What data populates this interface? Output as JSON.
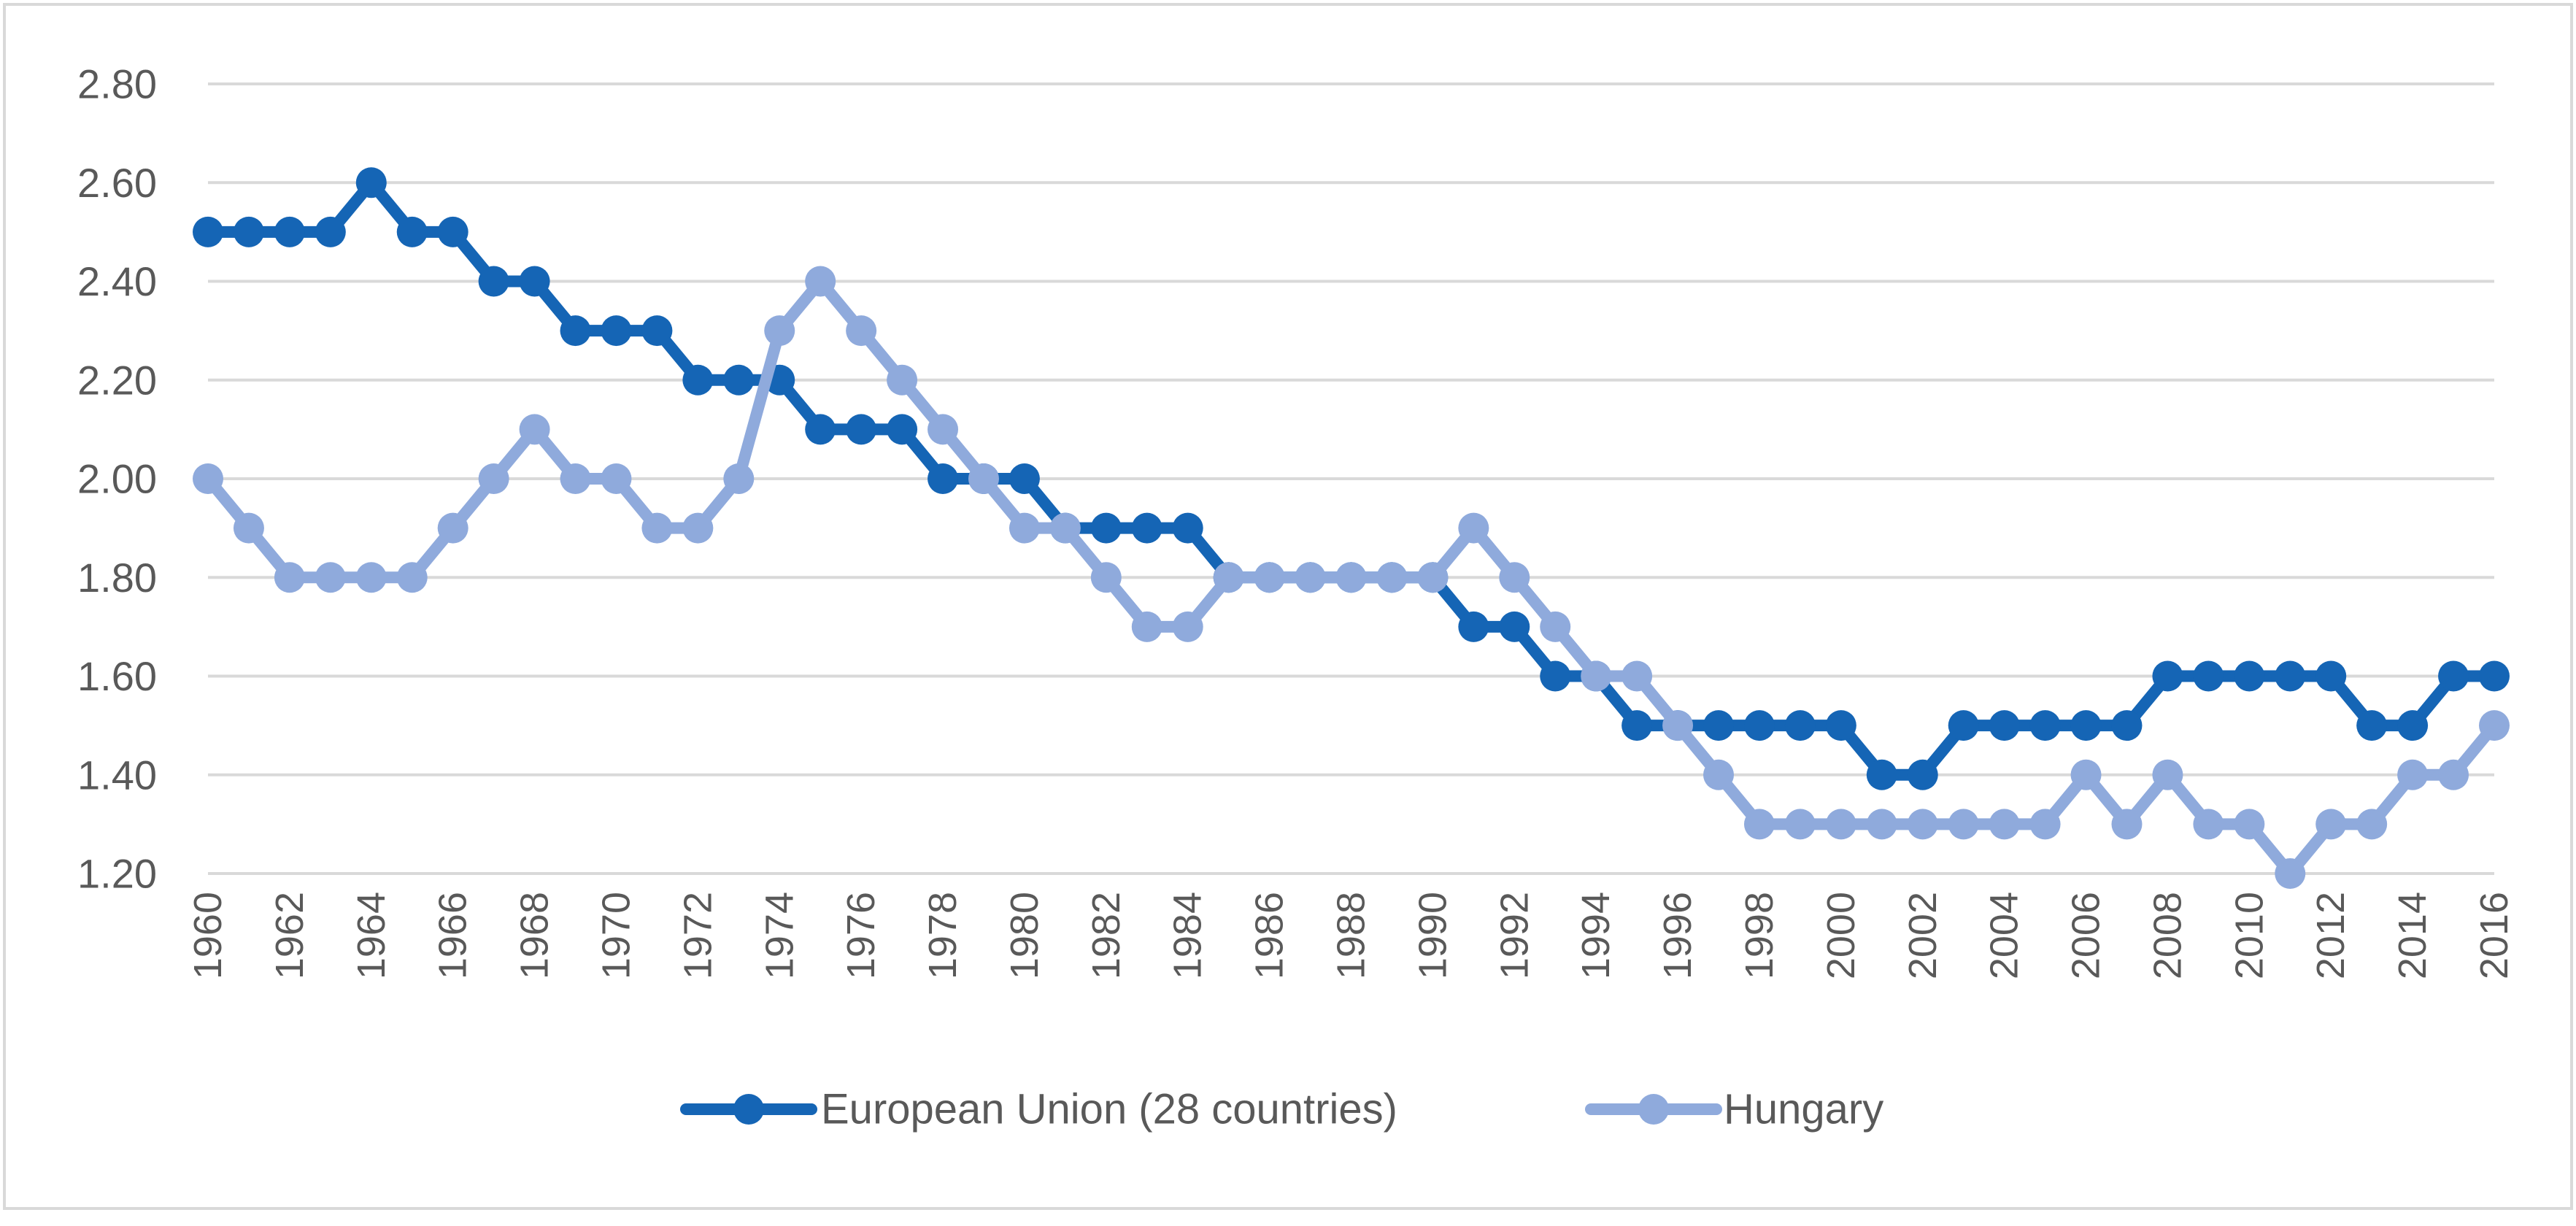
{
  "chart_data": {
    "type": "line",
    "title": "",
    "xlabel": "",
    "ylabel": "",
    "ylim": [
      1.2,
      2.8
    ],
    "yticks": [
      "1.20",
      "1.40",
      "1.60",
      "1.80",
      "2.00",
      "2.20",
      "2.40",
      "2.60",
      "2.80"
    ],
    "x": [
      1960,
      1961,
      1962,
      1963,
      1964,
      1965,
      1966,
      1967,
      1968,
      1969,
      1970,
      1971,
      1972,
      1973,
      1974,
      1975,
      1976,
      1977,
      1978,
      1979,
      1980,
      1981,
      1982,
      1983,
      1984,
      1985,
      1986,
      1987,
      1988,
      1989,
      1990,
      1991,
      1992,
      1993,
      1994,
      1995,
      1996,
      1997,
      1998,
      1999,
      2000,
      2001,
      2002,
      2003,
      2004,
      2005,
      2006,
      2007,
      2008,
      2009,
      2010,
      2011,
      2012,
      2013,
      2014,
      2015,
      2016
    ],
    "xtick_labels": [
      "1960",
      "1962",
      "1964",
      "1966",
      "1968",
      "1970",
      "1972",
      "1974",
      "1976",
      "1978",
      "1980",
      "1982",
      "1984",
      "1986",
      "1988",
      "1990",
      "1992",
      "1994",
      "1996",
      "1998",
      "2000",
      "2002",
      "2004",
      "2006",
      "2008",
      "2010",
      "2012",
      "2014",
      "2016"
    ],
    "grid": true,
    "legend_position": "bottom",
    "series": [
      {
        "name": "European Union (28 countries)",
        "color": "#1565B5",
        "values": [
          2.5,
          2.5,
          2.5,
          2.5,
          2.6,
          2.5,
          2.5,
          2.4,
          2.4,
          2.3,
          2.3,
          2.3,
          2.2,
          2.2,
          2.2,
          2.1,
          2.1,
          2.1,
          2.0,
          2.0,
          2.0,
          1.9,
          1.9,
          1.9,
          1.9,
          1.8,
          1.8,
          1.8,
          1.8,
          1.8,
          1.8,
          1.7,
          1.7,
          1.6,
          1.6,
          1.5,
          1.5,
          1.5,
          1.5,
          1.5,
          1.5,
          1.4,
          1.4,
          1.5,
          1.5,
          1.5,
          1.5,
          1.5,
          1.6,
          1.6,
          1.6,
          1.6,
          1.6,
          1.5,
          1.5,
          1.6,
          1.6
        ]
      },
      {
        "name": "Hungary",
        "color": "#8FAADC",
        "values": [
          2.0,
          1.9,
          1.8,
          1.8,
          1.8,
          1.8,
          1.9,
          2.0,
          2.1,
          2.0,
          2.0,
          1.9,
          1.9,
          2.0,
          2.3,
          2.4,
          2.3,
          2.2,
          2.1,
          2.0,
          1.9,
          1.9,
          1.8,
          1.7,
          1.7,
          1.8,
          1.8,
          1.8,
          1.8,
          1.8,
          1.8,
          1.9,
          1.8,
          1.7,
          1.6,
          1.6,
          1.5,
          1.4,
          1.3,
          1.3,
          1.3,
          1.3,
          1.3,
          1.3,
          1.3,
          1.3,
          1.4,
          1.3,
          1.4,
          1.3,
          1.3,
          1.2,
          1.3,
          1.3,
          1.4,
          1.4,
          1.5
        ]
      }
    ]
  }
}
